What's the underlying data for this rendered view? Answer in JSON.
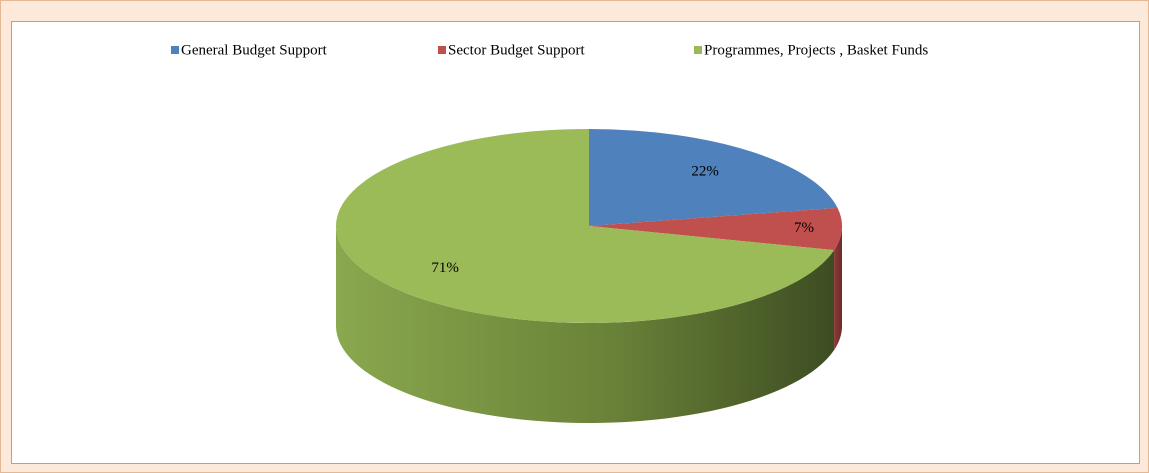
{
  "chart_data": {
    "type": "pie",
    "categories": [
      "General Budget Support",
      "Sector Budget Support",
      "Programmes, Projects , Basket Funds"
    ],
    "values": [
      22,
      7,
      71
    ],
    "value_labels": [
      "22%",
      "7%",
      "71%"
    ],
    "colors": [
      "#4f81bd",
      "#c0504d",
      "#9bbb59"
    ],
    "legend": "top"
  }
}
